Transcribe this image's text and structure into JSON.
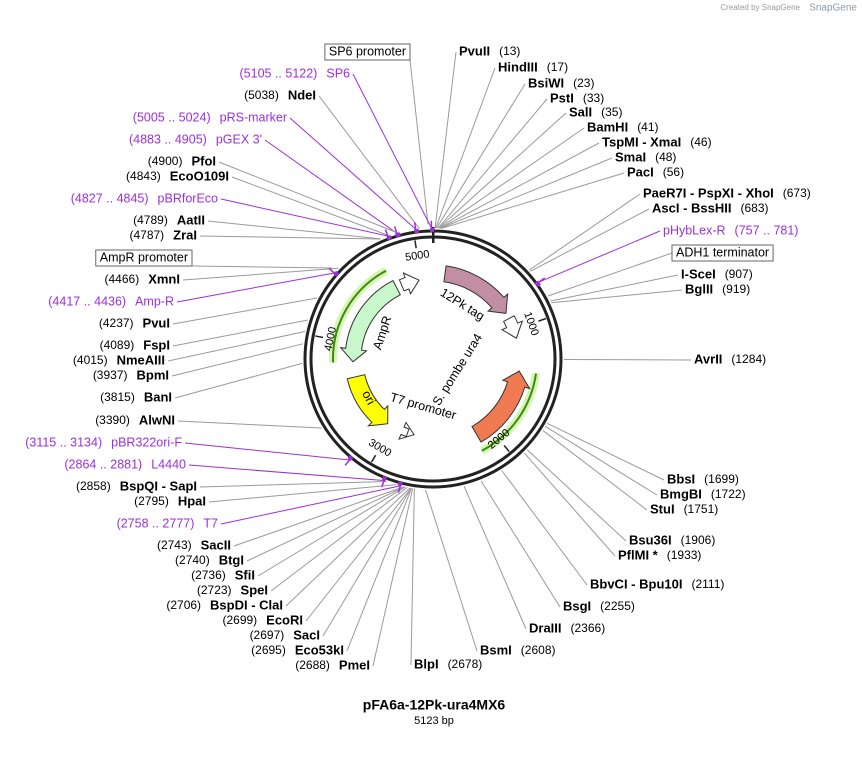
{
  "header": {
    "credit": "Created by SnapGene"
  },
  "plasmid": {
    "name": "pFA6a-12Pk-ura4MX6",
    "length": {
      "value": 5123,
      "label": "5123 bp"
    },
    "ticks": [
      1000,
      2000,
      3000,
      4000,
      5000
    ]
  },
  "features": [
    {
      "name": "12Pk tag"
    },
    {
      "name": "S. pombe ura4"
    },
    {
      "name": "AmpR"
    },
    {
      "name": "ori"
    },
    {
      "name": "T7 promoter"
    }
  ],
  "labels": [
    {
      "kind": "enzyme",
      "name": "PvuII",
      "site": {
        "value": 13,
        "label": "(13)"
      }
    },
    {
      "kind": "enzyme",
      "name": "HindIII",
      "site": {
        "value": 17,
        "label": "(17)"
      }
    },
    {
      "kind": "enzyme",
      "name": "BsiWI",
      "site": {
        "value": 23,
        "label": "(23)"
      }
    },
    {
      "kind": "enzyme",
      "name": "PstI",
      "site": {
        "value": 33,
        "label": "(33)"
      }
    },
    {
      "kind": "enzyme",
      "name": "SalI",
      "site": {
        "value": 35,
        "label": "(35)"
      }
    },
    {
      "kind": "enzyme",
      "name": "BamHI",
      "site": {
        "value": 41,
        "label": "(41)"
      }
    },
    {
      "kind": "enzyme",
      "name": "TspMI - XmaI",
      "site": {
        "value": 46,
        "label": "(46)"
      }
    },
    {
      "kind": "enzyme",
      "name": "SmaI",
      "site": {
        "value": 48,
        "label": "(48)"
      }
    },
    {
      "kind": "enzyme",
      "name": "PacI",
      "site": {
        "value": 56,
        "label": "(56)"
      }
    },
    {
      "kind": "enzyme",
      "name": "PaeR7I - PspXI - XhoI",
      "site": {
        "value": 673,
        "label": "(673)"
      }
    },
    {
      "kind": "enzyme",
      "name": "AscI - BssHII",
      "site": {
        "value": 683,
        "label": "(683)"
      }
    },
    {
      "kind": "primer",
      "name": "pHybLex-R",
      "start": 757,
      "end": 781,
      "range_label": "(757 .. 781)"
    },
    {
      "kind": "feature",
      "name": "ADH1 terminator"
    },
    {
      "kind": "enzyme",
      "name": "I-SceI",
      "site": {
        "value": 907,
        "label": "(907)"
      }
    },
    {
      "kind": "enzyme",
      "name": "BglII",
      "site": {
        "value": 919,
        "label": "(919)"
      }
    },
    {
      "kind": "enzyme",
      "name": "AvrII",
      "site": {
        "value": 1284,
        "label": "(1284)"
      }
    },
    {
      "kind": "enzyme",
      "name": "BbsI",
      "site": {
        "value": 1699,
        "label": "(1699)"
      }
    },
    {
      "kind": "enzyme",
      "name": "BmgBI",
      "site": {
        "value": 1722,
        "label": "(1722)"
      }
    },
    {
      "kind": "enzyme",
      "name": "StuI",
      "site": {
        "value": 1751,
        "label": "(1751)"
      }
    },
    {
      "kind": "enzyme",
      "name": "Bsu36I",
      "site": {
        "value": 1906,
        "label": "(1906)"
      }
    },
    {
      "kind": "enzyme",
      "name": "PflMI *",
      "site": {
        "value": 1933,
        "label": "(1933)"
      }
    },
    {
      "kind": "enzyme",
      "name": "BbvCI - Bpu10I",
      "site": {
        "value": 2111,
        "label": "(2111)"
      }
    },
    {
      "kind": "enzyme",
      "name": "BsgI",
      "site": {
        "value": 2255,
        "label": "(2255)"
      }
    },
    {
      "kind": "enzyme",
      "name": "DraIII",
      "site": {
        "value": 2366,
        "label": "(2366)"
      }
    },
    {
      "kind": "enzyme",
      "name": "BsmI",
      "site": {
        "value": 2608,
        "label": "(2608)"
      }
    },
    {
      "kind": "enzyme",
      "name": "BlpI",
      "site": {
        "value": 2678,
        "label": "(2678)"
      }
    },
    {
      "kind": "feature",
      "name": "SP6 promoter"
    },
    {
      "kind": "primer",
      "name": "SP6",
      "start": 5105,
      "end": 5122,
      "range_label": "(5105 .. 5122)"
    },
    {
      "kind": "enzyme",
      "name": "NdeI",
      "site": {
        "value": 5038,
        "label": "(5038)"
      }
    },
    {
      "kind": "primer",
      "name": "pRS-marker",
      "start": 5005,
      "end": 5024,
      "range_label": "(5005 .. 5024)"
    },
    {
      "kind": "primer",
      "name": "pGEX 3'",
      "start": 4883,
      "end": 4905,
      "range_label": "(4883 .. 4905)"
    },
    {
      "kind": "enzyme",
      "name": "PfoI",
      "site": {
        "value": 4900,
        "label": "(4900)"
      }
    },
    {
      "kind": "enzyme",
      "name": "EcoO109I",
      "site": {
        "value": 4843,
        "label": "(4843)"
      }
    },
    {
      "kind": "primer",
      "name": "pBRforEco",
      "start": 4827,
      "end": 4845,
      "range_label": "(4827 .. 4845)"
    },
    {
      "kind": "enzyme",
      "name": "AatII",
      "site": {
        "value": 4789,
        "label": "(4789)"
      }
    },
    {
      "kind": "enzyme",
      "name": "ZraI",
      "site": {
        "value": 4787,
        "label": "(4787)"
      }
    },
    {
      "kind": "feature",
      "name": "AmpR promoter"
    },
    {
      "kind": "enzyme",
      "name": "XmnI",
      "site": {
        "value": 4466,
        "label": "(4466)"
      }
    },
    {
      "kind": "primer",
      "name": "Amp-R",
      "start": 4417,
      "end": 4436,
      "range_label": "(4417 .. 4436)"
    },
    {
      "kind": "enzyme",
      "name": "PvuI",
      "site": {
        "value": 4237,
        "label": "(4237)"
      }
    },
    {
      "kind": "enzyme",
      "name": "FspI",
      "site": {
        "value": 4089,
        "label": "(4089)"
      }
    },
    {
      "kind": "enzyme",
      "name": "NmeAIII",
      "site": {
        "value": 4015,
        "label": "(4015)"
      }
    },
    {
      "kind": "enzyme",
      "name": "BpmI",
      "site": {
        "value": 3937,
        "label": "(3937)"
      }
    },
    {
      "kind": "enzyme",
      "name": "BanI",
      "site": {
        "value": 3815,
        "label": "(3815)"
      }
    },
    {
      "kind": "enzyme",
      "name": "AlwNI",
      "site": {
        "value": 3390,
        "label": "(3390)"
      }
    },
    {
      "kind": "primer",
      "name": "pBR322ori-F",
      "start": 3115,
      "end": 3134,
      "range_label": "(3115 .. 3134)"
    },
    {
      "kind": "primer",
      "name": "L4440",
      "start": 2864,
      "end": 2881,
      "range_label": "(2864 .. 2881)"
    },
    {
      "kind": "enzyme",
      "name": "BspQI - SapI",
      "site": {
        "value": 2858,
        "label": "(2858)"
      }
    },
    {
      "kind": "enzyme",
      "name": "HpaI",
      "site": {
        "value": 2795,
        "label": "(2795)"
      }
    },
    {
      "kind": "primer",
      "name": "T7",
      "start": 2758,
      "end": 2777,
      "range_label": "(2758 .. 2777)"
    },
    {
      "kind": "enzyme",
      "name": "SacII",
      "site": {
        "value": 2743,
        "label": "(2743)"
      }
    },
    {
      "kind": "enzyme",
      "name": "BtgI",
      "site": {
        "value": 2740,
        "label": "(2740)"
      }
    },
    {
      "kind": "enzyme",
      "name": "SfiI",
      "site": {
        "value": 2736,
        "label": "(2736)"
      }
    },
    {
      "kind": "enzyme",
      "name": "SpeI",
      "site": {
        "value": 2723,
        "label": "(2723)"
      }
    },
    {
      "kind": "enzyme",
      "name": "BspDI - ClaI",
      "site": {
        "value": 2706,
        "label": "(2706)"
      }
    },
    {
      "kind": "enzyme",
      "name": "EcoRI",
      "site": {
        "value": 2699,
        "label": "(2699)"
      }
    },
    {
      "kind": "enzyme",
      "name": "SacI",
      "site": {
        "value": 2697,
        "label": "(2697)"
      }
    },
    {
      "kind": "enzyme",
      "name": "Eco53kI",
      "site": {
        "value": 2695,
        "label": "(2695)"
      }
    },
    {
      "kind": "enzyme",
      "name": "PmeI",
      "site": {
        "value": 2688,
        "label": "(2688)"
      }
    }
  ]
}
